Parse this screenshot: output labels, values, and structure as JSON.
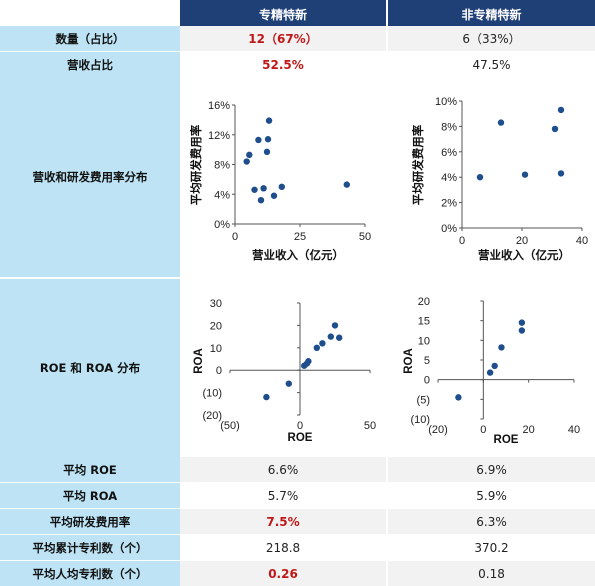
{
  "header": {
    "col1": "专精特新",
    "col2": "非专精特新"
  },
  "rows": {
    "count": {
      "label": "数量（占比）",
      "v1": "12（67%）",
      "v2": "6（33%）"
    },
    "revenue_share": {
      "label": "营收占比",
      "v1": "52.5%",
      "v2": "47.5%"
    },
    "rd_dist": {
      "label": "营收和研发费用率分布"
    },
    "roe_roa_dist": {
      "label": "ROE 和 ROA 分布"
    },
    "avg_roe": {
      "label": "平均 ROE",
      "v1": "6.6%",
      "v2": "6.9%"
    },
    "avg_roa": {
      "label": "平均 ROA",
      "v1": "5.7%",
      "v2": "5.9%"
    },
    "avg_rd": {
      "label": "平均研发费用率",
      "v1": "7.5%",
      "v2": "6.3%"
    },
    "avg_patents": {
      "label": "平均累计专利数（个）",
      "v1": "218.8",
      "v2": "370.2"
    },
    "avg_patents_per_capita": {
      "label": "平均人均专利数（个）",
      "v1": "0.26",
      "v2": "0.18"
    }
  },
  "colors": {
    "header_bg": "#1f3f77",
    "label_bg": "#bde3f4",
    "highlight": "#c01818",
    "marker": "#1f4e8c"
  },
  "chart_data": [
    {
      "id": "rd-spec",
      "type": "scatter",
      "xlabel": "营业收入（亿元）",
      "ylabel": "平均研发费用率",
      "xlim": [
        0,
        50
      ],
      "xticks": [
        0,
        25,
        50
      ],
      "xtick_labels": [
        "0",
        "25",
        "50"
      ],
      "ylim": [
        0,
        16
      ],
      "yticks": [
        0,
        4,
        8,
        12,
        16
      ],
      "ytick_labels": [
        "0%",
        "4%",
        "8%",
        "12%",
        "16%"
      ],
      "points": [
        [
          4.5,
          8.4
        ],
        [
          5.5,
          9.3
        ],
        [
          7.5,
          4.6
        ],
        [
          9,
          11.3
        ],
        [
          10,
          3.2
        ],
        [
          11,
          4.8
        ],
        [
          12.3,
          9.7
        ],
        [
          12.7,
          11.4
        ],
        [
          13.1,
          13.9
        ],
        [
          15,
          3.8
        ],
        [
          18,
          5.0
        ],
        [
          43,
          5.3
        ]
      ]
    },
    {
      "id": "rd-nonspec",
      "type": "scatter",
      "xlabel": "营业收入（亿元）",
      "ylabel": "平均研发费用率",
      "xlim": [
        0,
        40
      ],
      "xticks": [
        0,
        20,
        40
      ],
      "xtick_labels": [
        "0",
        "20",
        "40"
      ],
      "ylim": [
        0,
        10
      ],
      "yticks": [
        0,
        2,
        4,
        6,
        8,
        10
      ],
      "ytick_labels": [
        "0%",
        "2%",
        "4%",
        "6%",
        "8%",
        "10%"
      ],
      "points": [
        [
          6,
          4.0
        ],
        [
          13,
          8.3
        ],
        [
          21,
          4.2
        ],
        [
          31,
          7.8
        ],
        [
          33,
          9.3
        ],
        [
          33,
          4.3
        ]
      ]
    },
    {
      "id": "roe-spec",
      "type": "scatter",
      "xlabel": "ROE",
      "ylabel": "ROA",
      "xlim": [
        -50,
        50
      ],
      "xticks": [
        -50,
        0,
        50
      ],
      "xtick_labels": [
        "(50)",
        "0",
        "50"
      ],
      "ylim": [
        -20,
        30
      ],
      "yticks": [
        -20,
        -10,
        0,
        10,
        20,
        30
      ],
      "ytick_labels": [
        "(20)",
        "(10)",
        "0",
        "10",
        "20",
        "30"
      ],
      "points": [
        [
          -24,
          -12
        ],
        [
          -8,
          -6
        ],
        [
          3,
          2
        ],
        [
          5,
          3
        ],
        [
          6,
          4
        ],
        [
          12,
          10
        ],
        [
          16,
          12
        ],
        [
          22,
          15
        ],
        [
          25,
          20
        ],
        [
          28,
          14.5
        ]
      ]
    },
    {
      "id": "roe-nonspec",
      "type": "scatter",
      "xlabel": "ROE",
      "ylabel": "ROA",
      "xlim": [
        -20,
        40
      ],
      "xticks": [
        -20,
        0,
        20,
        40
      ],
      "xtick_labels": [
        "(20)",
        "0",
        "20",
        "40"
      ],
      "ylim": [
        -10,
        20
      ],
      "yticks": [
        -10,
        -5,
        0,
        5,
        10,
        15,
        20
      ],
      "ytick_labels": [
        "(10)",
        "(5)",
        "0",
        "5",
        "10",
        "15",
        "20"
      ],
      "points": [
        [
          -11,
          -4.5
        ],
        [
          3,
          1.8
        ],
        [
          5,
          3.5
        ],
        [
          8,
          8.2
        ],
        [
          17,
          14.5
        ],
        [
          17,
          12.5
        ]
      ]
    }
  ]
}
